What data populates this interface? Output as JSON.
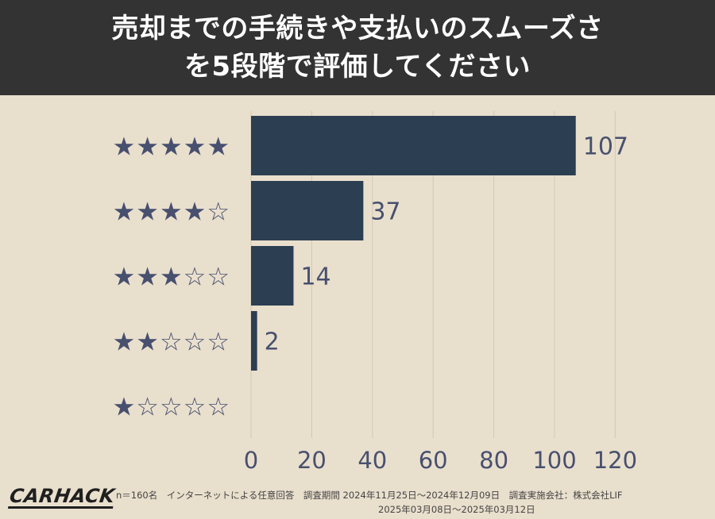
{
  "header": {
    "title_line1": "売却までの手続きや支払いのスムーズさ",
    "title_line2": "を5段階で評価してください"
  },
  "chart_data": {
    "type": "bar",
    "orientation": "horizontal",
    "categories": [
      "★★★★★",
      "★★★★☆",
      "★★★☆☆",
      "★★☆☆☆",
      "★☆☆☆☆"
    ],
    "values": [
      107,
      37,
      14,
      2,
      0
    ],
    "data_labels": [
      "107",
      "37",
      "14",
      "2",
      ""
    ],
    "xlim": [
      0,
      120
    ],
    "xticks": [
      0,
      20,
      40,
      60,
      80,
      100,
      120
    ],
    "grid": "vertical",
    "title": "",
    "xlabel": "",
    "ylabel": ""
  },
  "colors": {
    "bar": "#2b3e52",
    "stars": "#47506e",
    "background": "#e9dfcd",
    "header": "#333333",
    "grid": "#d2c8b6",
    "label": "#47506e"
  },
  "footer": {
    "logo": "CARHACK",
    "note_line1": "n＝160名　インターネットによる任意回答　調査期間 2024年11月25日〜2024年12月09日　調査実施会社：株式会社LIF",
    "note_line2": "2025年03月08日〜2025年03月12日"
  }
}
